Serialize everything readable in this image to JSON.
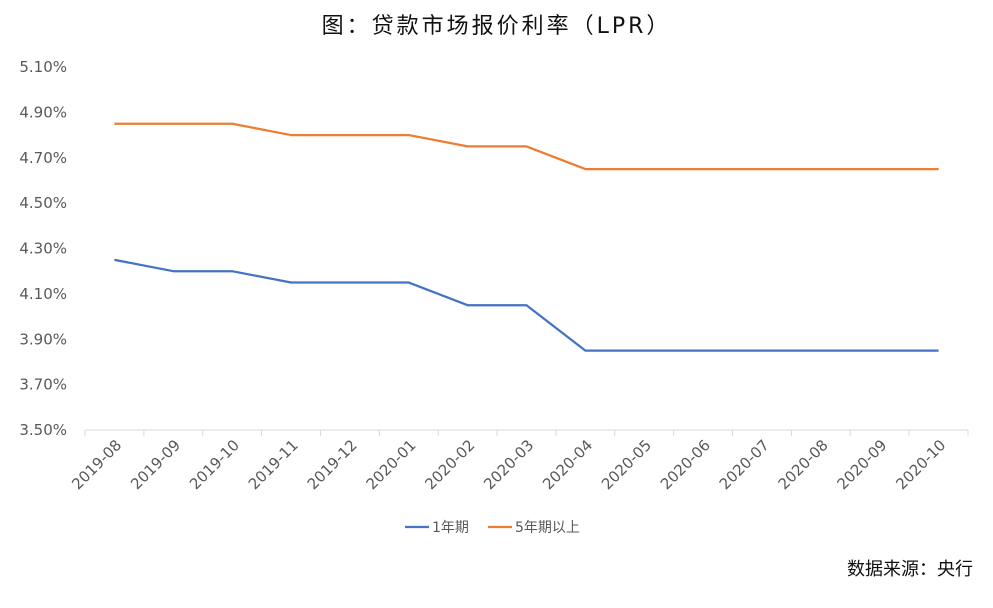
{
  "chart_data": {
    "type": "line",
    "title": "图：贷款市场报价利率（LPR）",
    "source": "数据来源：央行",
    "categories": [
      "2019-08",
      "2019-09",
      "2019-10",
      "2019-11",
      "2019-12",
      "2020-01",
      "2020-02",
      "2020-03",
      "2020-04",
      "2020-05",
      "2020-06",
      "2020-07",
      "2020-08",
      "2020-09",
      "2020-10"
    ],
    "series": [
      {
        "name": "1年期",
        "color": "#4472C4",
        "values": [
          4.25,
          4.2,
          4.2,
          4.15,
          4.15,
          4.15,
          4.05,
          4.05,
          3.85,
          3.85,
          3.85,
          3.85,
          3.85,
          3.85,
          3.85
        ]
      },
      {
        "name": "5年期以上",
        "color": "#ED7D31",
        "values": [
          4.85,
          4.85,
          4.85,
          4.8,
          4.8,
          4.8,
          4.75,
          4.75,
          4.65,
          4.65,
          4.65,
          4.65,
          4.65,
          4.65,
          4.65
        ]
      }
    ],
    "yticks": [
      "3.50%",
      "3.70%",
      "3.90%",
      "4.10%",
      "4.30%",
      "4.50%",
      "4.70%",
      "4.90%",
      "5.10%"
    ],
    "ylim": [
      3.5,
      5.1
    ],
    "xlabel": "",
    "ylabel": "",
    "grid": false,
    "legend": "bottom"
  }
}
